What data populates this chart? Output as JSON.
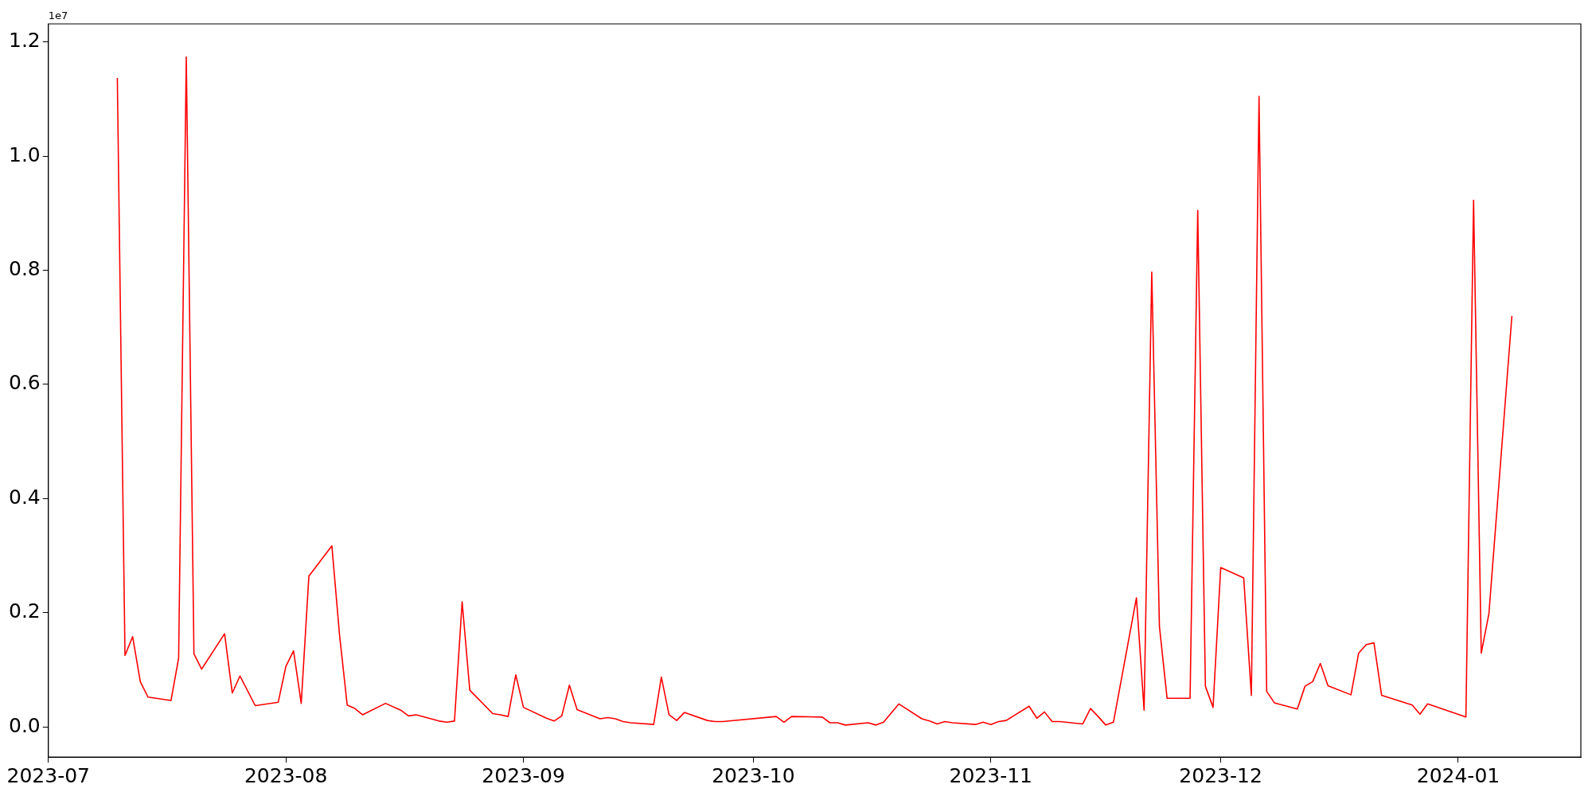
{
  "chart_data": {
    "type": "line",
    "color": "#ff0000",
    "x": [
      "2023-07-10",
      "2023-07-11",
      "2023-07-12",
      "2023-07-13",
      "2023-07-14",
      "2023-07-17",
      "2023-07-18",
      "2023-07-19",
      "2023-07-20",
      "2023-07-21",
      "2023-07-24",
      "2023-07-25",
      "2023-07-26",
      "2023-07-28",
      "2023-07-31",
      "2023-08-01",
      "2023-08-02",
      "2023-08-03",
      "2023-08-04",
      "2023-08-07",
      "2023-08-08",
      "2023-08-09",
      "2023-08-10",
      "2023-08-11",
      "2023-08-14",
      "2023-08-16",
      "2023-08-17",
      "2023-08-18",
      "2023-08-21",
      "2023-08-22",
      "2023-08-23",
      "2023-08-24",
      "2023-08-25",
      "2023-08-28",
      "2023-08-29",
      "2023-08-30",
      "2023-08-31",
      "2023-09-01",
      "2023-09-04",
      "2023-09-05",
      "2023-09-06",
      "2023-09-07",
      "2023-09-08",
      "2023-09-11",
      "2023-09-12",
      "2023-09-13",
      "2023-09-14",
      "2023-09-15",
      "2023-09-18",
      "2023-09-19",
      "2023-09-20",
      "2023-09-21",
      "2023-09-22",
      "2023-09-25",
      "2023-09-26",
      "2023-09-27",
      "2023-10-04",
      "2023-10-05",
      "2023-10-06",
      "2023-10-10",
      "2023-10-11",
      "2023-10-12",
      "2023-10-13",
      "2023-10-16",
      "2023-10-17",
      "2023-10-18",
      "2023-10-20",
      "2023-10-23",
      "2023-10-24",
      "2023-10-25",
      "2023-10-26",
      "2023-10-27",
      "2023-10-30",
      "2023-10-31",
      "2023-11-01",
      "2023-11-02",
      "2023-11-03",
      "2023-11-06",
      "2023-11-07",
      "2023-11-08",
      "2023-11-09",
      "2023-11-10",
      "2023-11-13",
      "2023-11-14",
      "2023-11-15",
      "2023-11-16",
      "2023-11-17",
      "2023-11-20",
      "2023-11-21",
      "2023-11-22",
      "2023-11-23",
      "2023-11-24",
      "2023-11-27",
      "2023-11-28",
      "2023-11-29",
      "2023-11-30",
      "2023-12-01",
      "2023-12-04",
      "2023-12-05",
      "2023-12-06",
      "2023-12-07",
      "2023-12-08",
      "2023-12-11",
      "2023-12-12",
      "2023-12-13",
      "2023-12-14",
      "2023-12-15",
      "2023-12-18",
      "2023-12-19",
      "2023-12-20",
      "2023-12-21",
      "2023-12-22",
      "2023-12-26",
      "2023-12-27",
      "2023-12-28",
      "2024-01-02",
      "2024-01-03",
      "2024-01-04",
      "2024-01-05",
      "2024-01-08"
    ],
    "values": [
      1.137,
      0.125,
      0.158,
      0.079,
      0.052,
      0.046,
      0.12,
      1.174,
      0.128,
      0.101,
      0.163,
      0.059,
      0.089,
      0.037,
      0.043,
      0.106,
      0.133,
      0.041,
      0.264,
      0.317,
      0.161,
      0.038,
      0.032,
      0.021,
      0.041,
      0.029,
      0.019,
      0.021,
      0.01,
      0.008,
      0.01,
      0.219,
      0.064,
      0.023,
      0.021,
      0.018,
      0.091,
      0.034,
      0.015,
      0.01,
      0.019,
      0.073,
      0.03,
      0.014,
      0.016,
      0.014,
      0.009,
      0.007,
      0.004,
      0.087,
      0.021,
      0.011,
      0.025,
      0.011,
      0.009,
      0.009,
      0.018,
      0.008,
      0.018,
      0.017,
      0.007,
      0.007,
      0.003,
      0.007,
      0.003,
      0.008,
      0.04,
      0.014,
      0.01,
      0.005,
      0.009,
      0.007,
      0.004,
      0.008,
      0.004,
      0.009,
      0.011,
      0.036,
      0.015,
      0.026,
      0.009,
      0.009,
      0.005,
      0.032,
      0.018,
      0.003,
      0.008,
      0.226,
      0.029,
      0.797,
      0.176,
      0.05,
      0.05,
      0.905,
      0.071,
      0.034,
      0.279,
      0.261,
      0.055,
      1.105,
      0.062,
      0.042,
      0.031,
      0.071,
      0.079,
      0.111,
      0.072,
      0.056,
      0.129,
      0.144,
      0.147,
      0.055,
      0.038,
      0.022,
      0.04,
      0.017,
      0.923,
      0.129,
      0.198,
      0.72
    ],
    "xlim": [
      "2023-07-01",
      "2024-01-17"
    ],
    "xticks": [
      "2023-07",
      "2023-08",
      "2023-09",
      "2023-10",
      "2023-11",
      "2023-12",
      "2024-01"
    ],
    "ylim": [
      -0.053,
      1.232
    ],
    "yticks": [
      {
        "value": 0,
        "label": "0.0"
      },
      0.2,
      0.4,
      0.6,
      0.8,
      {
        "value": 1,
        "label": "1.0"
      },
      1.2
    ],
    "annotations": [
      "1e7"
    ]
  }
}
